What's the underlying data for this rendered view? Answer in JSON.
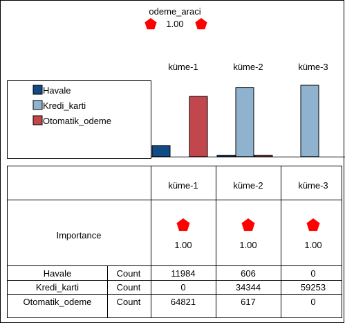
{
  "header": {
    "variable_name": "odeme_araci",
    "importance": "1.00",
    "icon": "red-pentagon-icon"
  },
  "colors": {
    "Havale": "#114b85",
    "Kredi_karti": "#8fb3cf",
    "Otomatik_odeme": "#c2474d",
    "importance_icon": "#ff0000"
  },
  "chart_data": {
    "type": "bar",
    "categories": [
      "küme-1",
      "küme-2",
      "küme-3"
    ],
    "series": [
      {
        "name": "Havale",
        "values": [
          11984,
          606,
          0
        ]
      },
      {
        "name": "Kredi_karti",
        "values": [
          0,
          34344,
          59253
        ]
      },
      {
        "name": "Otomatik_odeme",
        "values": [
          64821,
          617,
          0
        ]
      }
    ],
    "legend_position": "left"
  },
  "table": {
    "cluster_headers": [
      "küme-1",
      "küme-2",
      "küme-3"
    ],
    "importance_label": "Importance",
    "importance_values": [
      "1.00",
      "1.00",
      "1.00"
    ],
    "rows": [
      {
        "category": "Havale",
        "stat": "Count",
        "values": [
          "11984",
          "606",
          "0"
        ]
      },
      {
        "category": "Kredi_karti",
        "stat": "Count",
        "values": [
          "0",
          "34344",
          "59253"
        ]
      },
      {
        "category": "Otomatik_odeme",
        "stat": "Count",
        "values": [
          "64821",
          "617",
          "0"
        ]
      }
    ]
  }
}
